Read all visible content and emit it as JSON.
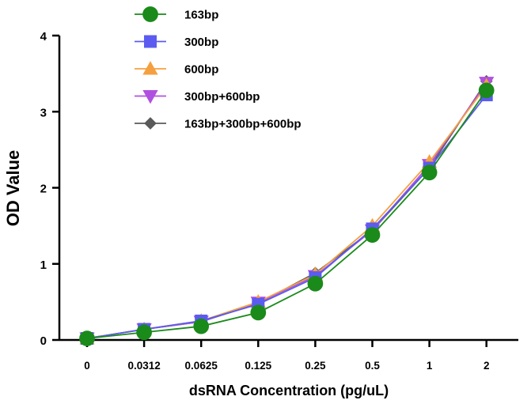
{
  "chart_data": {
    "type": "line",
    "title": "",
    "xlabel": "dsRNA Concentration (pg/uL)",
    "ylabel": "OD Value",
    "categories": [
      "0",
      "0.0312",
      "0.0625",
      "0.125",
      "0.25",
      "0.5",
      "1",
      "2"
    ],
    "ylim": [
      0,
      4
    ],
    "yticks": [
      "0",
      "1",
      "2",
      "3",
      "4"
    ],
    "grid": false,
    "legend_position": "top-left",
    "series": [
      {
        "name": "163bp",
        "marker": "circle",
        "color": "#1a8a1a",
        "values": [
          0.02,
          0.1,
          0.18,
          0.36,
          0.74,
          1.38,
          2.2,
          3.28
        ]
      },
      {
        "name": "300bp",
        "marker": "square",
        "color": "#5b5bf0",
        "values": [
          0.02,
          0.14,
          0.25,
          0.47,
          0.82,
          1.46,
          2.26,
          3.22
        ]
      },
      {
        "name": "600bp",
        "marker": "triangle-up",
        "color": "#f4a040",
        "values": [
          0.02,
          0.14,
          0.25,
          0.5,
          0.86,
          1.5,
          2.34,
          3.34
        ]
      },
      {
        "name": "300bp+600bp",
        "marker": "triangle-down",
        "color": "#b050e0",
        "values": [
          0.02,
          0.14,
          0.24,
          0.49,
          0.84,
          1.44,
          2.3,
          3.38
        ]
      },
      {
        "name": "163bp+300bp+600bp",
        "marker": "diamond",
        "color": "#5a5a5a",
        "values": [
          0.02,
          0.14,
          0.24,
          0.48,
          0.88,
          1.44,
          2.26,
          3.4
        ]
      }
    ]
  }
}
